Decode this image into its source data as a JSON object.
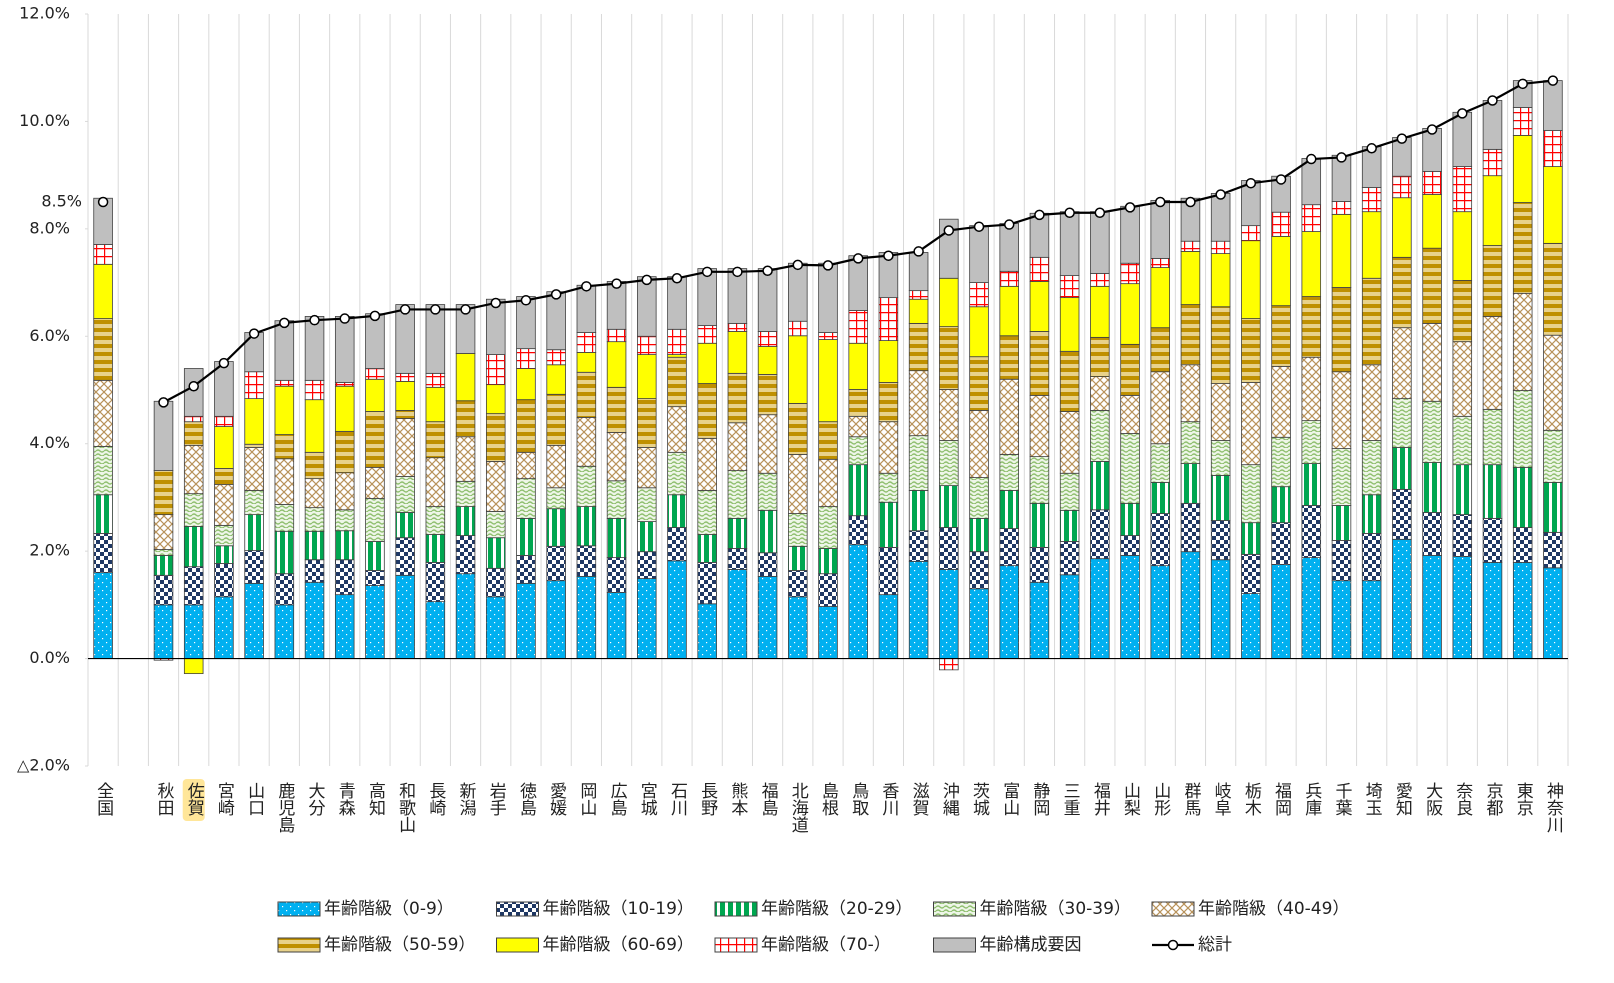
{
  "chart_data": {
    "type": "bar",
    "stacked": true,
    "annotation": "8.5%",
    "grid": "x",
    "categories": [
      "全国",
      null,
      "秋田",
      "佐賀",
      "宮崎",
      "山口",
      "鹿児島",
      "大分",
      "青森",
      "高知",
      "和歌山",
      "長崎",
      "新潟",
      "岩手",
      "徳島",
      "愛媛",
      "岡山",
      "広島",
      "宮城",
      "石川",
      "長野",
      "熊本",
      "福島",
      "北海道",
      "島根",
      "鳥取",
      "香川",
      "滋賀",
      "沖縄",
      "茨城",
      "富山",
      "静岡",
      "三重",
      "福井",
      "山梨",
      "山形",
      "群馬",
      "岐阜",
      "栃木",
      "福岡",
      "兵庫",
      "千葉",
      "埼玉",
      "愛知",
      "大阪",
      "奈良",
      "京都",
      "東京",
      "神奈川"
    ],
    "ylim": [
      -2,
      12
    ],
    "yticks": [
      {
        "value": -2,
        "label": "△2.0%"
      },
      {
        "value": 0,
        "label": "0.0%"
      },
      {
        "value": 2,
        "label": "2.0%"
      },
      {
        "value": 4,
        "label": "4.0%"
      },
      {
        "value": 6,
        "label": "6.0%"
      },
      {
        "value": 8,
        "label": "8.0%"
      },
      {
        "value": 10,
        "label": "10.0%"
      },
      {
        "value": 12,
        "label": "12.0%"
      }
    ],
    "series": [
      {
        "name": "年齢階級（0-9）",
        "type": "bar",
        "color": "#00b0f0",
        "pattern": "dots",
        "values": [
          1.6,
          null,
          1.0,
          1.0,
          1.15,
          1.4,
          1.0,
          1.42,
          1.19,
          1.36,
          1.55,
          1.06,
          1.58,
          1.15,
          1.4,
          1.45,
          1.53,
          1.23,
          1.49,
          1.82,
          1.02,
          1.66,
          1.53,
          1.15,
          0.97,
          2.12,
          1.19,
          1.81,
          1.66,
          1.3,
          1.73,
          1.42,
          1.56,
          1.86,
          1.92,
          1.73,
          1.99,
          1.84,
          1.21,
          1.75,
          1.88,
          1.45,
          1.45,
          2.22,
          1.92,
          1.9,
          1.79,
          1.79,
          1.69
        ]
      },
      {
        "name": "年齢階級（10-19）",
        "type": "bar",
        "color": "#1f3864",
        "pattern": "checker",
        "values": [
          0.73,
          null,
          0.55,
          0.71,
          0.62,
          0.61,
          0.58,
          0.42,
          0.65,
          0.28,
          0.7,
          0.73,
          0.71,
          0.53,
          0.52,
          0.64,
          0.57,
          0.65,
          0.5,
          0.62,
          0.77,
          0.39,
          0.44,
          0.49,
          0.61,
          0.54,
          0.88,
          0.57,
          0.78,
          0.69,
          0.69,
          0.65,
          0.62,
          0.91,
          0.37,
          0.97,
          0.9,
          0.73,
          0.73,
          0.78,
          0.97,
          0.75,
          0.88,
          0.93,
          0.8,
          0.78,
          0.82,
          0.65,
          0.66
        ]
      },
      {
        "name": "年齢階級（20-29）",
        "type": "bar",
        "color": "#00a650",
        "pattern": "vstripes",
        "values": [
          0.72,
          null,
          0.37,
          0.75,
          0.33,
          0.67,
          0.79,
          0.53,
          0.54,
          0.54,
          0.47,
          0.52,
          0.54,
          0.57,
          0.69,
          0.7,
          0.73,
          0.73,
          0.56,
          0.61,
          0.52,
          0.56,
          0.79,
          0.45,
          0.47,
          0.95,
          0.84,
          0.75,
          0.78,
          0.62,
          0.71,
          0.82,
          0.58,
          0.9,
          0.6,
          0.58,
          0.74,
          0.84,
          0.59,
          0.67,
          0.78,
          0.65,
          0.72,
          0.78,
          0.93,
          0.93,
          1.0,
          1.12,
          0.93
        ]
      },
      {
        "name": "年齢階級（30-39）",
        "type": "bar",
        "color": "#8fbf6f",
        "pattern": "waves",
        "values": [
          0.9,
          null,
          0.11,
          0.61,
          0.38,
          0.45,
          0.5,
          0.44,
          0.39,
          0.8,
          0.67,
          0.52,
          0.47,
          0.49,
          0.74,
          0.39,
          0.75,
          0.7,
          0.63,
          0.79,
          0.82,
          0.89,
          0.69,
          0.61,
          0.78,
          0.52,
          0.54,
          1.02,
          0.84,
          0.76,
          0.67,
          0.87,
          0.69,
          0.95,
          1.3,
          0.72,
          0.78,
          0.65,
          1.08,
          0.92,
          0.8,
          1.06,
          1.01,
          0.91,
          1.14,
          0.9,
          1.03,
          1.43,
          0.97
        ]
      },
      {
        "name": "年齢階級（40-49）",
        "type": "bar",
        "color": "#b8925a",
        "pattern": "crosshatch",
        "values": [
          1.23,
          null,
          0.65,
          0.9,
          0.76,
          0.8,
          0.85,
          0.54,
          0.69,
          0.58,
          1.08,
          0.91,
          0.83,
          0.93,
          0.49,
          0.79,
          0.91,
          0.9,
          0.75,
          0.85,
          0.97,
          0.89,
          1.09,
          1.1,
          0.88,
          0.38,
          0.96,
          1.21,
          0.95,
          1.25,
          1.4,
          1.14,
          1.15,
          0.63,
          0.71,
          1.34,
          1.06,
          1.06,
          1.53,
          1.32,
          1.18,
          1.43,
          1.41,
          1.32,
          1.45,
          1.39,
          1.73,
          1.81,
          1.77
        ]
      },
      {
        "name": "年齢階級（50-59）",
        "type": "bar",
        "color": "#bf9000",
        "pattern": "hstripes",
        "values": [
          1.15,
          null,
          0.82,
          0.44,
          0.3,
          0.06,
          0.45,
          0.49,
          0.77,
          1.04,
          0.15,
          0.67,
          0.67,
          0.89,
          0.98,
          0.95,
          0.84,
          0.84,
          0.91,
          0.92,
          1.02,
          0.92,
          0.75,
          0.95,
          0.7,
          0.5,
          0.73,
          0.88,
          1.17,
          1.0,
          0.81,
          1.19,
          1.12,
          0.73,
          0.95,
          0.82,
          1.12,
          1.43,
          1.19,
          1.13,
          1.13,
          1.57,
          1.61,
          1.31,
          1.4,
          1.14,
          1.32,
          1.69,
          1.71
        ]
      },
      {
        "name": "年齢階級（60-69）",
        "type": "bar",
        "color": "#ffff00",
        "pattern": "solid",
        "values": [
          1.01,
          null,
          0.0,
          -0.28,
          0.78,
          0.85,
          0.9,
          0.98,
          0.84,
          0.6,
          0.54,
          0.64,
          0.88,
          0.54,
          0.58,
          0.55,
          0.37,
          0.85,
          0.82,
          0.05,
          0.75,
          0.78,
          0.52,
          1.26,
          1.53,
          0.86,
          0.78,
          0.45,
          0.9,
          0.93,
          0.92,
          0.93,
          1.0,
          0.95,
          1.13,
          1.12,
          0.99,
          0.99,
          1.45,
          1.29,
          1.21,
          1.36,
          1.24,
          1.11,
          1.0,
          1.28,
          1.3,
          1.25,
          1.43
        ]
      },
      {
        "name": "年齢階級（70-）",
        "type": "bar",
        "color": "#ff0000",
        "pattern": "grid",
        "values": [
          0.37,
          null,
          -0.03,
          0.1,
          0.19,
          0.5,
          0.11,
          0.36,
          0.07,
          0.2,
          0.15,
          0.26,
          0.0,
          0.56,
          0.37,
          0.28,
          0.37,
          0.23,
          0.34,
          0.47,
          0.33,
          0.15,
          0.28,
          0.27,
          0.13,
          0.61,
          0.8,
          0.16,
          -0.21,
          0.45,
          0.28,
          0.45,
          0.41,
          0.24,
          0.38,
          0.17,
          0.19,
          0.23,
          0.28,
          0.45,
          0.5,
          0.24,
          0.45,
          0.4,
          0.43,
          0.84,
          0.49,
          0.52,
          0.67
        ]
      },
      {
        "name": "年齢構成要因",
        "type": "bar",
        "color": "#bfbfbf",
        "pattern": "solid",
        "values": [
          0.86,
          null,
          1.29,
          0.89,
          1.02,
          0.73,
          1.11,
          1.19,
          1.23,
          1.02,
          1.28,
          1.28,
          0.91,
          1.03,
          0.97,
          1.08,
          0.88,
          0.89,
          1.11,
          0.98,
          1.06,
          1.02,
          1.17,
          1.08,
          1.29,
          1.02,
          0.84,
          0.71,
          1.1,
          1.06,
          0.89,
          0.82,
          1.19,
          1.15,
          1.06,
          1.08,
          0.8,
          0.89,
          0.84,
          0.67,
          0.86,
          0.86,
          0.76,
          0.72,
          0.8,
          1.01,
          0.91,
          0.5,
          0.93
        ]
      },
      {
        "name": "総計",
        "type": "line",
        "color": "#000000",
        "values": [
          8.5,
          null,
          4.77,
          5.07,
          5.5,
          6.05,
          6.25,
          6.3,
          6.33,
          6.38,
          6.5,
          6.5,
          6.5,
          6.62,
          6.67,
          6.78,
          6.93,
          6.98,
          7.05,
          7.08,
          7.2,
          7.2,
          7.22,
          7.33,
          7.32,
          7.45,
          7.5,
          7.58,
          7.97,
          8.04,
          8.08,
          8.26,
          8.3,
          8.3,
          8.4,
          8.5,
          8.5,
          8.64,
          8.85,
          8.92,
          9.3,
          9.33,
          9.5,
          9.68,
          9.85,
          10.15,
          10.39,
          10.7,
          10.76
        ]
      }
    ]
  }
}
